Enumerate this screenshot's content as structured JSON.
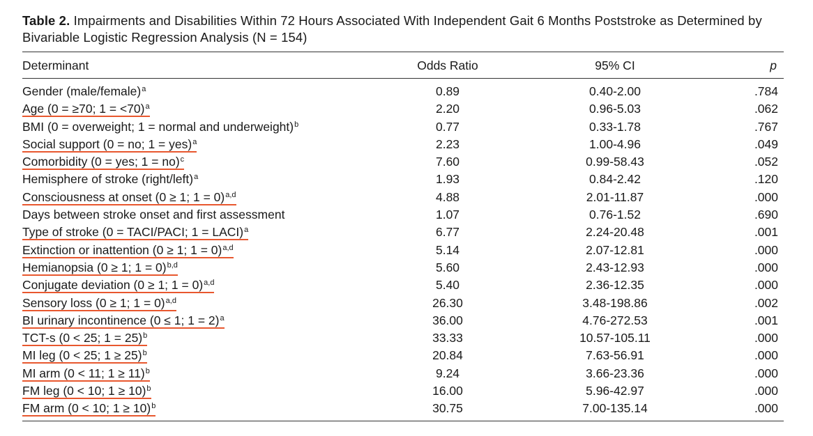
{
  "caption": {
    "label": "Table 2.",
    "text": "Impairments and Disabilities Within 72 Hours Associated With Independent Gait 6 Months Poststroke as Determined by Bivariable Logistic Regression Analysis (N = 154)"
  },
  "headers": {
    "determinant": "Determinant",
    "odds_ratio": "Odds Ratio",
    "ci": "95% CI",
    "p": "p"
  },
  "highlight_color": "#e8572e",
  "rows": [
    {
      "determinant": "Gender (male/female)",
      "sup": "a",
      "odds_ratio": "0.89",
      "ci": "0.40-2.00",
      "p": ".784",
      "highlighted": false
    },
    {
      "determinant": "Age (0 = ≥70; 1 = <70)",
      "sup": "a",
      "odds_ratio": "2.20",
      "ci": "0.96-5.03",
      "p": ".062",
      "highlighted": true
    },
    {
      "determinant": "BMI (0 = overweight; 1 = normal and underweight)",
      "sup": "b",
      "odds_ratio": "0.77",
      "ci": "0.33-1.78",
      "p": ".767",
      "highlighted": false
    },
    {
      "determinant": "Social support (0 = no; 1 = yes)",
      "sup": "a",
      "odds_ratio": "2.23",
      "ci": "1.00-4.96",
      "p": ".049",
      "highlighted": true
    },
    {
      "determinant": "Comorbidity (0 = yes; 1 = no)",
      "sup": "c",
      "odds_ratio": "7.60",
      "ci": "0.99-58.43",
      "p": ".052",
      "highlighted": true
    },
    {
      "determinant": "Hemisphere of stroke (right/left)",
      "sup": "a",
      "odds_ratio": "1.93",
      "ci": "0.84-2.42",
      "p": ".120",
      "highlighted": false
    },
    {
      "determinant": "Consciousness at onset (0 ≥ 1; 1 = 0)",
      "sup": "a,d",
      "odds_ratio": "4.88",
      "ci": "2.01-11.87",
      "p": ".000",
      "highlighted": true
    },
    {
      "determinant": "Days between stroke onset and first assessment",
      "sup": "",
      "odds_ratio": "1.07",
      "ci": "0.76-1.52",
      "p": ".690",
      "highlighted": false
    },
    {
      "determinant": "Type of stroke (0 = TACI/PACI; 1 = LACI)",
      "sup": "a",
      "odds_ratio": "6.77",
      "ci": "2.24-20.48",
      "p": ".001",
      "highlighted": true
    },
    {
      "determinant": "Extinction or inattention (0 ≥ 1; 1 = 0)",
      "sup": "a,d",
      "odds_ratio": "5.14",
      "ci": "2.07-12.81",
      "p": ".000",
      "highlighted": true
    },
    {
      "determinant": "Hemianopsia (0 ≥ 1; 1 = 0)",
      "sup": "b,d",
      "odds_ratio": "5.60",
      "ci": "2.43-12.93",
      "p": ".000",
      "highlighted": true
    },
    {
      "determinant": "Conjugate deviation (0 ≥ 1; 1 = 0)",
      "sup": "a,d",
      "odds_ratio": "5.40",
      "ci": "2.36-12.35",
      "p": ".000",
      "highlighted": true
    },
    {
      "determinant": "Sensory loss (0 ≥ 1; 1 = 0)",
      "sup": "a,d",
      "odds_ratio": "26.30",
      "ci": "3.48-198.86",
      "p": ".002",
      "highlighted": true
    },
    {
      "determinant": "BI urinary incontinence (0 ≤ 1; 1 = 2)",
      "sup": "a",
      "odds_ratio": "36.00",
      "ci": "4.76-272.53",
      "p": ".001",
      "highlighted": true
    },
    {
      "determinant": "TCT-s (0 < 25; 1 = 25)",
      "sup": "b",
      "odds_ratio": "33.33",
      "ci": "10.57-105.11",
      "p": ".000",
      "highlighted": true
    },
    {
      "determinant": "MI leg (0 < 25; 1 ≥ 25)",
      "sup": "b",
      "odds_ratio": "20.84",
      "ci": "7.63-56.91",
      "p": ".000",
      "highlighted": true
    },
    {
      "determinant": "MI arm (0 < 11; 1 ≥ 11)",
      "sup": "b",
      "odds_ratio": "9.24",
      "ci": "3.66-23.36",
      "p": ".000",
      "highlighted": true
    },
    {
      "determinant": "FM leg (0 < 10; 1 ≥ 10)",
      "sup": "b",
      "odds_ratio": "16.00",
      "ci": "5.96-42.97",
      "p": ".000",
      "highlighted": true
    },
    {
      "determinant": "FM arm (0 < 10; 1 ≥ 10)",
      "sup": "b",
      "odds_ratio": "30.75",
      "ci": "7.00-135.14",
      "p": ".000",
      "highlighted": true
    }
  ]
}
